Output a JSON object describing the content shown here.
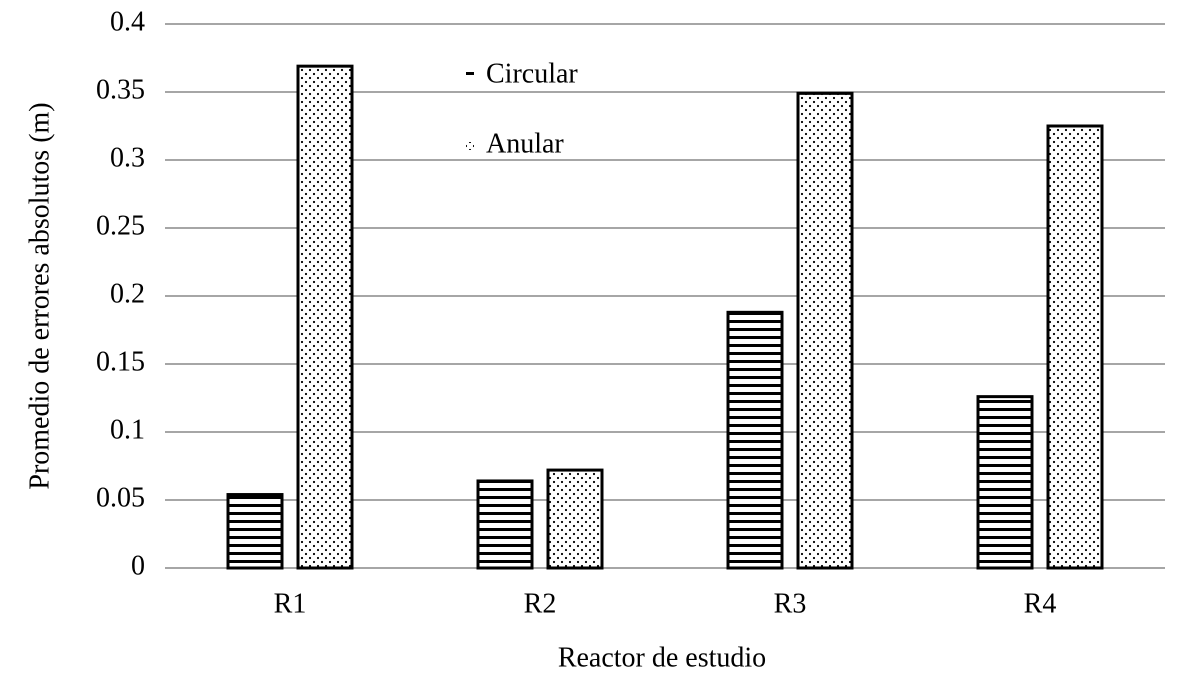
{
  "chart_data": {
    "type": "bar",
    "x_label": "Reactor de estudio",
    "y_label": "Promedio de errores absolutos (m)",
    "categories": [
      "R1",
      "R2",
      "R3",
      "R4"
    ],
    "series": [
      {
        "name": "Circular",
        "color": "#000000",
        "pattern": "stripes",
        "values": [
          0.054,
          0.064,
          0.188,
          0.126
        ]
      },
      {
        "name": "Anular",
        "color": "#000000",
        "pattern": "dots",
        "values": [
          0.369,
          0.072,
          0.349,
          0.325
        ]
      }
    ],
    "ylim": [
      0,
      0.4
    ],
    "yticks": [
      0,
      0.05,
      0.1,
      0.15,
      0.2,
      0.25,
      0.3,
      0.35,
      0.4
    ],
    "grid": true
  }
}
